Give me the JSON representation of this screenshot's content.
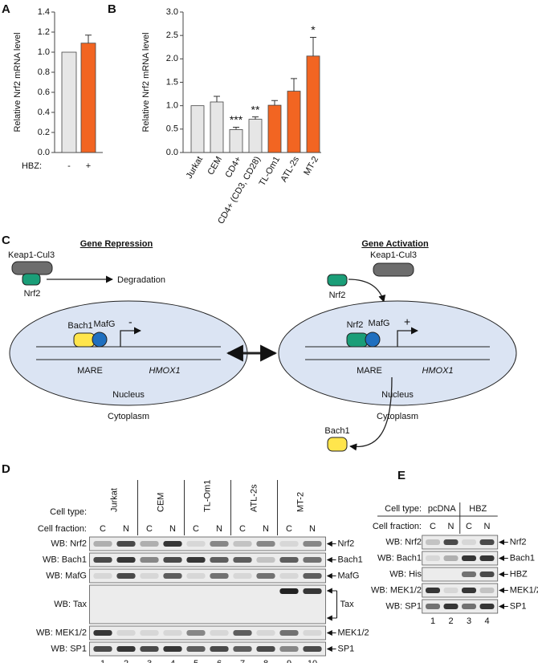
{
  "panel_labels": [
    "A",
    "B",
    "C",
    "D",
    "E"
  ],
  "chart_data": [
    {
      "type": "bar",
      "y_label": "Relative Nrf2 mRNA level",
      "x_label": "HBZ:",
      "categories": [
        "-",
        "+"
      ],
      "values": [
        1.0,
        1.09
      ],
      "errors": [
        null,
        0.08
      ],
      "colors": [
        "#e6e6e6",
        "#f26522"
      ],
      "ylim": [
        0,
        1.4
      ],
      "yticks": [
        {
          "value": 0,
          "label": "0.0"
        },
        0.2,
        0.4,
        0.6,
        0.8,
        {
          "value": 1,
          "label": "1.0"
        },
        1.2,
        1.4
      ]
    },
    {
      "type": "bar",
      "y_label": "Relative Nrf2 mRNA level",
      "categories": [
        "Jurkat",
        "CEM",
        "CD4+",
        "CD4+ (CD3, CD28)",
        "TL-Om1",
        "ATL-2s",
        "MT-2"
      ],
      "values": [
        1.0,
        1.08,
        0.49,
        0.71,
        1.01,
        1.31,
        2.06
      ],
      "errors": [
        null,
        0.12,
        0.05,
        0.05,
        0.1,
        0.27,
        0.4
      ],
      "significance": [
        null,
        null,
        "***",
        "**",
        null,
        null,
        "*"
      ],
      "colors": [
        "#e6e6e6",
        "#e6e6e6",
        "#e6e6e6",
        "#e6e6e6",
        "#f26522",
        "#f26522",
        "#f26522"
      ],
      "ylim": [
        0,
        3
      ],
      "yticks": [
        {
          "value": 0,
          "label": "0.0"
        },
        0.5,
        {
          "value": 1,
          "label": "1.0"
        },
        1.5,
        {
          "value": 2,
          "label": "2.0"
        },
        2.5,
        {
          "value": 3,
          "label": "3.0"
        }
      ]
    }
  ],
  "diagram": {
    "repression": {
      "title": "Gene Repression",
      "complex": "Keap1-Cul3",
      "nrf2": "Nrf2",
      "outcome": "Degradation",
      "bach1": "Bach1",
      "mafg": "MafG",
      "sign": "-",
      "element": "MARE",
      "gene": "HMOX1",
      "nucleus": "Nucleus",
      "cytoplasm": "Cytoplasm"
    },
    "activation": {
      "title": "Gene Activation",
      "complex": "Keap1-Cul3",
      "nrf2_free": "Nrf2",
      "nrf2": "Nrf2",
      "mafg": "MafG",
      "sign": "+",
      "element": "MARE",
      "gene": "HMOX1",
      "bach1": "Bach1",
      "nucleus": "Nucleus",
      "cytoplasm": "Cytoplasm"
    }
  },
  "blot_d": {
    "cell_type_label": "Cell type:",
    "cell_types": [
      "Jurkat",
      "CEM",
      "TL-Om1",
      "ATL-2s",
      "MT-2"
    ],
    "cell_fraction_label": "Cell fraction:",
    "fractions": [
      "C",
      "N",
      "C",
      "N",
      "C",
      "N",
      "C",
      "N",
      "C",
      "N"
    ],
    "rows": [
      {
        "label": "WB: Nrf2",
        "target": "Nrf2"
      },
      {
        "label": "WB: Bach1",
        "target": "Bach1"
      },
      {
        "label": "WB: MafG",
        "target": "MafG"
      },
      {
        "label": "WB: Tax",
        "target": "Tax"
      },
      {
        "label": "WB: MEK1/2",
        "target": "MEK1/2"
      },
      {
        "label": "WB: SP1",
        "target": "SP1"
      }
    ],
    "lanes": [
      1,
      2,
      3,
      4,
      5,
      6,
      7,
      8,
      9,
      10
    ]
  },
  "blot_e": {
    "cell_type_label": "Cell type:",
    "cell_types": [
      "pcDNA",
      "HBZ"
    ],
    "cell_fraction_label": "Cell fraction:",
    "fractions": [
      "C",
      "N",
      "C",
      "N"
    ],
    "rows": [
      {
        "label": "WB: Nrf2",
        "target": "Nrf2"
      },
      {
        "label": "WB: Bach1",
        "target": "Bach1"
      },
      {
        "label": "WB: His",
        "target": "HBZ"
      },
      {
        "label": "WB: MEK1/2",
        "target": "MEK1/2"
      },
      {
        "label": "WB: SP1",
        "target": "SP1"
      }
    ],
    "lanes": [
      1,
      2,
      3,
      4
    ]
  }
}
